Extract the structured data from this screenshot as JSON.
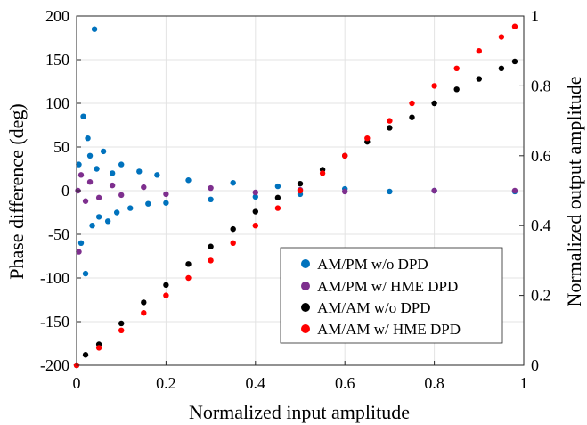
{
  "chart_data": {
    "type": "scatter",
    "xlabel": "Normalized input amplitude",
    "ylabel_left": "Phase difference (deg)",
    "ylabel_right": "Normalized output amplitude",
    "xlim": [
      0,
      1
    ],
    "ylim_left": [
      -200,
      200
    ],
    "ylim_right": [
      0,
      1
    ],
    "x_ticks": [
      {
        "value": 0,
        "label": "0"
      },
      {
        "value": 0.2,
        "label": "0.2"
      },
      {
        "value": 0.4,
        "label": "0.4"
      },
      {
        "value": 0.6,
        "label": "0.6"
      },
      {
        "value": 0.8,
        "label": "0.8"
      },
      {
        "value": 1,
        "label": "1"
      }
    ],
    "y_ticks_left": [
      {
        "value": -200,
        "label": "-200"
      },
      {
        "value": -150,
        "label": "-150"
      },
      {
        "value": -100,
        "label": "-100"
      },
      {
        "value": -50,
        "label": "-50"
      },
      {
        "value": 0,
        "label": "0"
      },
      {
        "value": 50,
        "label": "50"
      },
      {
        "value": 100,
        "label": "100"
      },
      {
        "value": 150,
        "label": "150"
      },
      {
        "value": 200,
        "label": "200"
      }
    ],
    "y_ticks_right": [
      {
        "value": 0,
        "label": "0"
      },
      {
        "value": 0.2,
        "label": "0.2"
      },
      {
        "value": 0.4,
        "label": "0.4"
      },
      {
        "value": 0.6,
        "label": "0.6"
      },
      {
        "value": 0.8,
        "label": "0.8"
      },
      {
        "value": 1,
        "label": "1"
      }
    ],
    "grid": true,
    "legend_position": "bottom-right",
    "series": [
      {
        "name": "AM/PM w/o DPD",
        "axis": "left",
        "color": "#0072BD",
        "points": [
          [
            0.005,
            30
          ],
          [
            0.01,
            -60
          ],
          [
            0.015,
            85
          ],
          [
            0.02,
            -95
          ],
          [
            0.025,
            60
          ],
          [
            0.03,
            40
          ],
          [
            0.035,
            -40
          ],
          [
            0.04,
            185
          ],
          [
            0.045,
            25
          ],
          [
            0.05,
            -30
          ],
          [
            0.06,
            45
          ],
          [
            0.07,
            -35
          ],
          [
            0.08,
            20
          ],
          [
            0.09,
            -25
          ],
          [
            0.1,
            30
          ],
          [
            0.12,
            -20
          ],
          [
            0.14,
            22
          ],
          [
            0.16,
            -15
          ],
          [
            0.18,
            18
          ],
          [
            0.2,
            -14
          ],
          [
            0.25,
            12
          ],
          [
            0.3,
            -10
          ],
          [
            0.35,
            9
          ],
          [
            0.4,
            -7
          ],
          [
            0.45,
            5
          ],
          [
            0.5,
            -4
          ],
          [
            0.6,
            2
          ],
          [
            0.7,
            -1
          ],
          [
            0.8,
            0
          ],
          [
            0.98,
            -1
          ]
        ]
      },
      {
        "name": "AM/PM w/ HME DPD",
        "axis": "left",
        "color": "#7E2F8E",
        "points": [
          [
            0.003,
            0
          ],
          [
            0.005,
            -70
          ],
          [
            0.01,
            18
          ],
          [
            0.02,
            -12
          ],
          [
            0.03,
            10
          ],
          [
            0.05,
            -8
          ],
          [
            0.08,
            6
          ],
          [
            0.1,
            -5
          ],
          [
            0.15,
            4
          ],
          [
            0.2,
            -4
          ],
          [
            0.3,
            3
          ],
          [
            0.4,
            -2
          ],
          [
            0.5,
            1
          ],
          [
            0.6,
            -1
          ],
          [
            0.8,
            0
          ],
          [
            0.98,
            0
          ]
        ]
      },
      {
        "name": "AM/AM w/o DPD",
        "axis": "right",
        "color": "#000000",
        "points": [
          [
            0,
            0
          ],
          [
            0.02,
            0.03
          ],
          [
            0.05,
            0.06
          ],
          [
            0.1,
            0.12
          ],
          [
            0.15,
            0.18
          ],
          [
            0.2,
            0.23
          ],
          [
            0.25,
            0.29
          ],
          [
            0.3,
            0.34
          ],
          [
            0.35,
            0.39
          ],
          [
            0.4,
            0.44
          ],
          [
            0.45,
            0.48
          ],
          [
            0.5,
            0.52
          ],
          [
            0.55,
            0.56
          ],
          [
            0.6,
            0.6
          ],
          [
            0.65,
            0.64
          ],
          [
            0.7,
            0.68
          ],
          [
            0.75,
            0.71
          ],
          [
            0.8,
            0.75
          ],
          [
            0.85,
            0.79
          ],
          [
            0.9,
            0.82
          ],
          [
            0.95,
            0.85
          ],
          [
            0.98,
            0.87
          ]
        ]
      },
      {
        "name": "AM/AM w/ HME DPD",
        "axis": "right",
        "color": "#FF0000",
        "points": [
          [
            0,
            0
          ],
          [
            0.05,
            0.05
          ],
          [
            0.1,
            0.1
          ],
          [
            0.15,
            0.15
          ],
          [
            0.2,
            0.2
          ],
          [
            0.25,
            0.25
          ],
          [
            0.3,
            0.3
          ],
          [
            0.35,
            0.35
          ],
          [
            0.4,
            0.4
          ],
          [
            0.45,
            0.45
          ],
          [
            0.5,
            0.5
          ],
          [
            0.55,
            0.55
          ],
          [
            0.6,
            0.6
          ],
          [
            0.65,
            0.65
          ],
          [
            0.7,
            0.7
          ],
          [
            0.75,
            0.75
          ],
          [
            0.8,
            0.8
          ],
          [
            0.85,
            0.85
          ],
          [
            0.9,
            0.9
          ],
          [
            0.95,
            0.94
          ],
          [
            0.98,
            0.97
          ]
        ]
      }
    ]
  }
}
